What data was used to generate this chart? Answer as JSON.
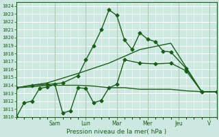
{
  "xlabel": "Pression niveau de la mer( hPa )",
  "bg_color": "#cce8e0",
  "grid_color": "#ffffff",
  "line_color": "#1a5c1a",
  "ylim": [
    1010,
    1024.5
  ],
  "yticks": [
    1010,
    1011,
    1012,
    1013,
    1014,
    1015,
    1016,
    1017,
    1018,
    1019,
    1020,
    1021,
    1022,
    1023,
    1024
  ],
  "xlim": [
    0,
    13.0
  ],
  "x_day_labels": [
    "Sam",
    "Lun",
    "Mar",
    "Mer",
    "Jeu",
    "V"
  ],
  "x_day_positions": [
    2.5,
    4.5,
    6.5,
    8.5,
    10.5,
    12.5
  ],
  "series": [
    {
      "x": [
        0,
        0.5,
        1.0,
        1.5,
        2.0,
        2.5,
        3.0,
        3.5,
        4.0,
        4.5,
        5.0,
        5.5,
        6.0,
        6.5,
        7.0,
        8.0,
        9.0,
        10.0,
        11.0,
        12.0,
        13.0
      ],
      "y": [
        1010.0,
        1011.8,
        1012.0,
        1013.6,
        1013.8,
        1014.1,
        1010.5,
        1010.8,
        1013.7,
        1013.6,
        1011.8,
        1012.1,
        1013.7,
        1014.1,
        1017.2,
        1016.8,
        1016.7,
        1016.8,
        1015.8,
        1013.2,
        1013.2
      ],
      "marker": "D",
      "markersize": 2.5,
      "linewidth": 1.0
    },
    {
      "x": [
        0,
        1,
        2,
        3,
        4,
        5,
        6,
        7,
        8,
        9,
        10,
        11,
        12,
        13
      ],
      "y": [
        1013.7,
        1013.8,
        1014.0,
        1014.0,
        1014.0,
        1013.9,
        1013.7,
        1013.7,
        1013.5,
        1013.5,
        1013.5,
        1013.3,
        1013.2,
        1013.2
      ],
      "marker": null,
      "markersize": 0,
      "linewidth": 1.0
    },
    {
      "x": [
        0,
        1,
        2,
        3,
        4,
        4.5,
        5.0,
        5.5,
        6.0,
        6.5,
        7.0,
        7.5,
        8.0,
        8.5,
        9.0,
        9.5,
        10.0,
        11.0,
        12.0,
        13.0
      ],
      "y": [
        1013.7,
        1014.0,
        1014.1,
        1014.3,
        1015.2,
        1017.2,
        1019.0,
        1021.0,
        1023.5,
        1022.8,
        1019.7,
        1018.5,
        1020.6,
        1019.8,
        1019.5,
        1018.3,
        1018.2,
        1016.1,
        1013.2,
        1013.2
      ],
      "marker": "D",
      "markersize": 2.5,
      "linewidth": 1.0
    },
    {
      "x": [
        0,
        2,
        4,
        6,
        8,
        10,
        12,
        13
      ],
      "y": [
        1013.7,
        1014.3,
        1015.5,
        1016.8,
        1018.5,
        1019.3,
        1013.2,
        1013.2
      ],
      "marker": null,
      "markersize": 0,
      "linewidth": 1.0
    }
  ]
}
